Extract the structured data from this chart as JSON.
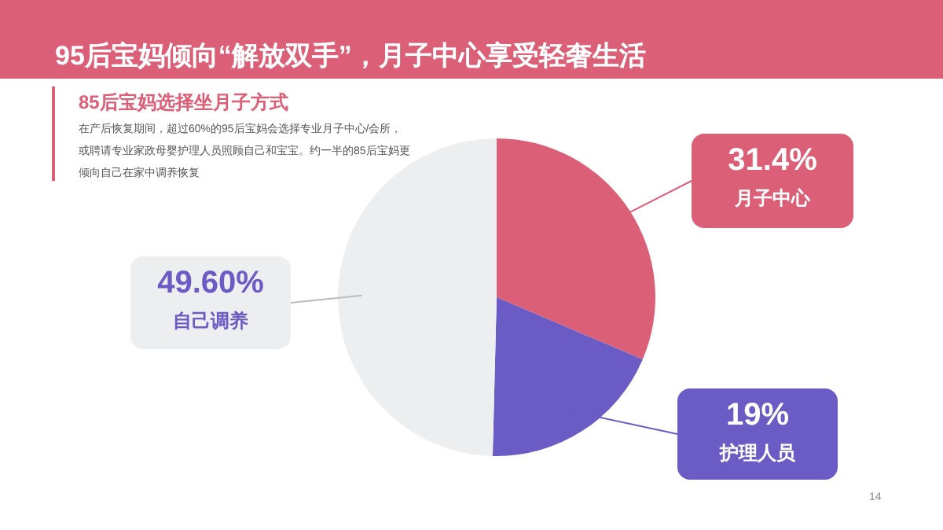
{
  "chart_data": {
    "type": "pie",
    "title": "95后宝妈倾向“解放双手”，月子中心享受轻奢生活",
    "subtitle": "85后宝妈选择坐月子方式",
    "categories": [
      "月子中心",
      "护理人员",
      "自己调养"
    ],
    "values": [
      31.4,
      19,
      49.6
    ],
    "value_labels": [
      "31.4%",
      "19%",
      "49.60%"
    ],
    "colors": [
      "#dc5f78",
      "#6a5cc4",
      "#eceef0"
    ],
    "annotations": [
      "在产后恢复期间，超过60%的95后宝妈会选择专业月子中心/会所，或聘请专业家政母婴护理人员照顾自己和宝宝。约一半的85后宝妈更倾向自己在家中调养恢复",
      "14"
    ],
    "data_labels": false
  }
}
